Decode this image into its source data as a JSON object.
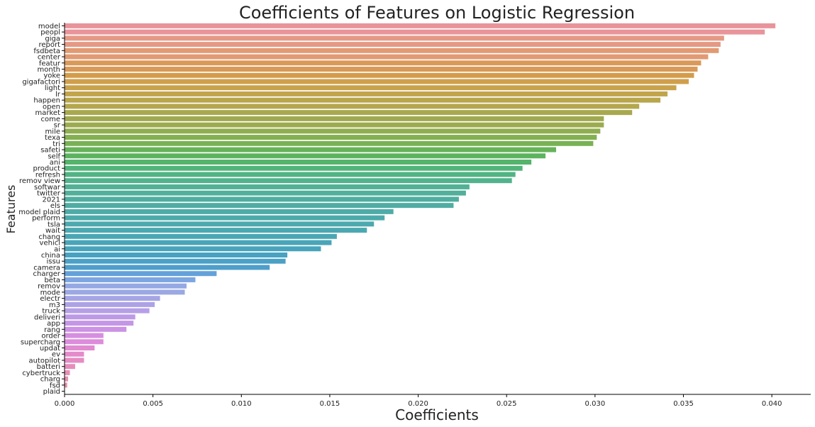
{
  "chart_data": {
    "type": "bar",
    "orientation": "horizontal",
    "title": "Coefficients of Features on Logistic Regression",
    "xlabel": "Coefficients",
    "ylabel": "Features",
    "xlim": [
      0,
      0.0422
    ],
    "xticks": [
      0.0,
      0.005,
      0.01,
      0.015,
      0.02,
      0.025,
      0.03,
      0.035,
      0.04
    ],
    "xtick_labels": [
      "0.000",
      "0.005",
      "0.010",
      "0.015",
      "0.020",
      "0.025",
      "0.030",
      "0.035",
      "0.040"
    ],
    "grid": false,
    "legend": "none",
    "categories": [
      "model",
      "peopl",
      "giga",
      "report",
      "fsdbeta",
      "center",
      "featur",
      "month",
      "yoke",
      "gigafactori",
      "light",
      "lr",
      "happen",
      "open",
      "market",
      "come",
      "sr",
      "mile",
      "texa",
      "tri",
      "safeti",
      "self",
      "ani",
      "product",
      "refresh",
      "remov view",
      "softwar",
      "twitter",
      "2021",
      "els",
      "model plaid",
      "perform",
      "tsla",
      "wait",
      "chang",
      "vehicl",
      "ai",
      "china",
      "issu",
      "camera",
      "charger",
      "beta",
      "remov",
      "mode",
      "electr",
      "m3",
      "truck",
      "deliveri",
      "app",
      "rang",
      "order",
      "supercharg",
      "updat",
      "ev",
      "autopilot",
      "batteri",
      "cybertruck",
      "charg",
      "fsd",
      "plaid"
    ],
    "values": [
      0.0402,
      0.0396,
      0.0373,
      0.0371,
      0.037,
      0.0364,
      0.036,
      0.0358,
      0.0356,
      0.0353,
      0.0346,
      0.0341,
      0.0337,
      0.0325,
      0.0321,
      0.0305,
      0.0305,
      0.0303,
      0.0301,
      0.0299,
      0.0278,
      0.0272,
      0.0264,
      0.0259,
      0.0255,
      0.0253,
      0.0229,
      0.0227,
      0.0223,
      0.022,
      0.0186,
      0.0181,
      0.0175,
      0.0171,
      0.0154,
      0.0151,
      0.0145,
      0.0126,
      0.0125,
      0.0116,
      0.0086,
      0.0074,
      0.0069,
      0.0068,
      0.0054,
      0.0051,
      0.0048,
      0.004,
      0.0039,
      0.0035,
      0.0022,
      0.0022,
      0.0017,
      0.0011,
      0.0011,
      0.0006,
      0.0003,
      0.0002,
      0.00015,
      0.0
    ],
    "palette": [
      "#e8949a",
      "#e8949a",
      "#e59985",
      "#e59985",
      "#e19a73",
      "#e19a73",
      "#d99958",
      "#d99958",
      "#d49c4a",
      "#d09f4b",
      "#c8a24c",
      "#c1a44c",
      "#b9a64c",
      "#b4a74d",
      "#a8a84e",
      "#a0a94f",
      "#9cab4f",
      "#90ad50",
      "#84b052",
      "#78b254",
      "#66b35a",
      "#5cb35f",
      "#54b46b",
      "#52b47a",
      "#52b384",
      "#52b28d",
      "#52b194",
      "#51af9a",
      "#50ae9f",
      "#4fada4",
      "#4eaba8",
      "#4daaab",
      "#4da9ad",
      "#4ca8b0",
      "#4aa6b4",
      "#49a5b8",
      "#48a4bc",
      "#48a2c1",
      "#4ba0c6",
      "#4f9ecb",
      "#64a1da",
      "#7da6e0",
      "#94a8e4",
      "#9ca8e4",
      "#a5a5e6",
      "#aea2e6",
      "#b59fe6",
      "#bc9ae6",
      "#c496e6",
      "#cc92e4",
      "#d68fe0",
      "#dc8cdb",
      "#e08bd2",
      "#e48bca",
      "#e58cc3",
      "#e68dbc",
      "#e68eb5",
      "#e68fae",
      "#e690a8",
      "#e692a2"
    ]
  }
}
